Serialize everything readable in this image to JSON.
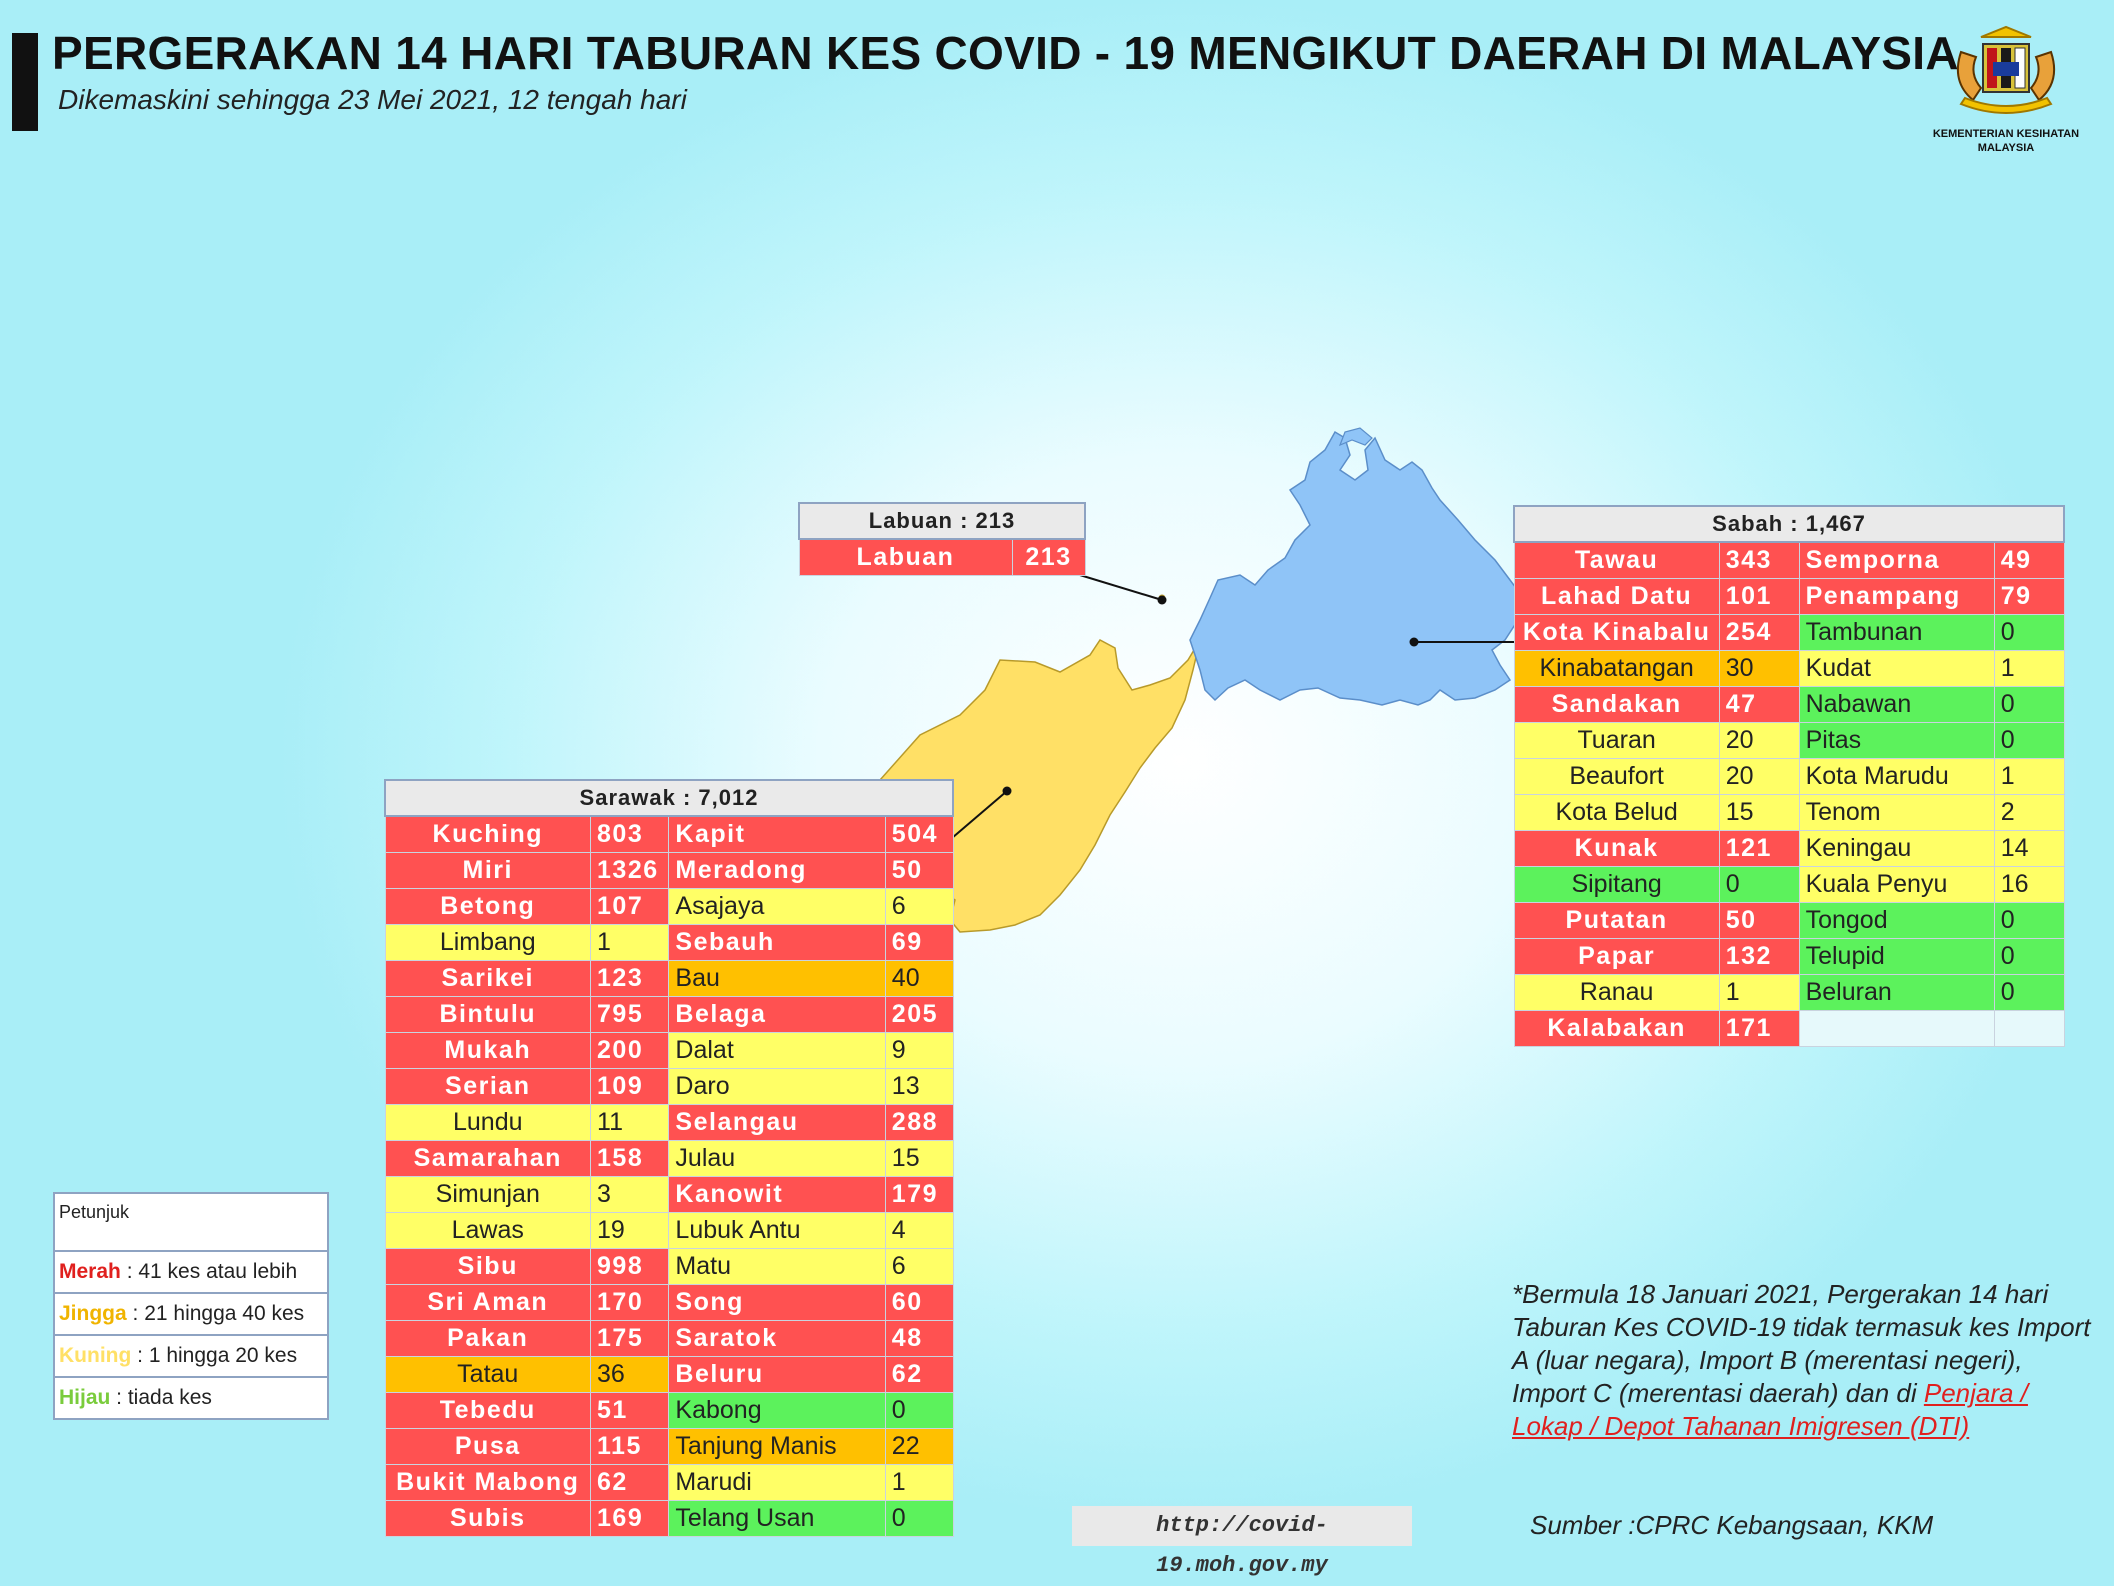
{
  "header": {
    "title": "PERGERAKAN 14 HARI TABURAN KES COVID - 19 MENGIKUT DAERAH DI MALAYSIA",
    "subtitle": "Dikemaskini sehingga 23 Mei 2021, 12 tengah hari"
  },
  "logo": {
    "text_line1": "KEMENTERIAN KESIHATAN",
    "text_line2": "MALAYSIA"
  },
  "colors": {
    "merah": "#ff5151",
    "jingga": "#ffc000",
    "kuning": "#ffff66",
    "hijau": "#5cf25c",
    "sabah_map": "#8fc4f7",
    "sarawak_map": "#ffe066"
  },
  "labuan": {
    "header": "Labuan : 213",
    "rows": [
      {
        "name": "Labuan",
        "value": "213",
        "level": "red"
      }
    ]
  },
  "sabah": {
    "header": "Sabah : 1,467",
    "rows": [
      [
        {
          "name": "Tawau",
          "value": "343",
          "level": "red"
        },
        {
          "name": "Semporna",
          "value": "49",
          "level": "red"
        }
      ],
      [
        {
          "name": "Lahad Datu",
          "value": "101",
          "level": "red"
        },
        {
          "name": "Penampang",
          "value": "79",
          "level": "red"
        }
      ],
      [
        {
          "name": "Kota Kinabalu",
          "value": "254",
          "level": "red"
        },
        {
          "name": "Tambunan",
          "value": "0",
          "level": "green"
        }
      ],
      [
        {
          "name": "Kinabatangan",
          "value": "30",
          "level": "orange"
        },
        {
          "name": "Kudat",
          "value": "1",
          "level": "yellow"
        }
      ],
      [
        {
          "name": "Sandakan",
          "value": "47",
          "level": "red"
        },
        {
          "name": "Nabawan",
          "value": "0",
          "level": "green"
        }
      ],
      [
        {
          "name": "Tuaran",
          "value": "20",
          "level": "yellow"
        },
        {
          "name": "Pitas",
          "value": "0",
          "level": "green"
        }
      ],
      [
        {
          "name": "Beaufort",
          "value": "20",
          "level": "yellow"
        },
        {
          "name": "Kota Marudu",
          "value": "1",
          "level": "yellow"
        }
      ],
      [
        {
          "name": "Kota Belud",
          "value": "15",
          "level": "yellow"
        },
        {
          "name": "Tenom",
          "value": "2",
          "level": "yellow"
        }
      ],
      [
        {
          "name": "Kunak",
          "value": "121",
          "level": "red"
        },
        {
          "name": "Keningau",
          "value": "14",
          "level": "yellow"
        }
      ],
      [
        {
          "name": "Sipitang",
          "value": "0",
          "level": "green"
        },
        {
          "name": "Kuala Penyu",
          "value": "16",
          "level": "yellow"
        }
      ],
      [
        {
          "name": "Putatan",
          "value": "50",
          "level": "red"
        },
        {
          "name": "Tongod",
          "value": "0",
          "level": "green"
        }
      ],
      [
        {
          "name": "Papar",
          "value": "132",
          "level": "red"
        },
        {
          "name": "Telupid",
          "value": "0",
          "level": "green"
        }
      ],
      [
        {
          "name": "Ranau",
          "value": "1",
          "level": "yellow"
        },
        {
          "name": "Beluran",
          "value": "0",
          "level": "green"
        }
      ],
      [
        {
          "name": "Kalabakan",
          "value": "171",
          "level": "red"
        },
        {
          "name": "",
          "value": "",
          "level": "empty"
        }
      ]
    ]
  },
  "sarawak": {
    "header": "Sarawak : 7,012",
    "rows": [
      [
        {
          "name": "Kuching",
          "value": "803",
          "level": "red"
        },
        {
          "name": "Kapit",
          "value": "504",
          "level": "red"
        }
      ],
      [
        {
          "name": "Miri",
          "value": "1326",
          "level": "red"
        },
        {
          "name": "Meradong",
          "value": "50",
          "level": "red"
        }
      ],
      [
        {
          "name": "Betong",
          "value": "107",
          "level": "red"
        },
        {
          "name": "Asajaya",
          "value": "6",
          "level": "yellow"
        }
      ],
      [
        {
          "name": "Limbang",
          "value": "1",
          "level": "yellow"
        },
        {
          "name": "Sebauh",
          "value": "69",
          "level": "red"
        }
      ],
      [
        {
          "name": "Sarikei",
          "value": "123",
          "level": "red"
        },
        {
          "name": "Bau",
          "value": "40",
          "level": "orange"
        }
      ],
      [
        {
          "name": "Bintulu",
          "value": "795",
          "level": "red"
        },
        {
          "name": "Belaga",
          "value": "205",
          "level": "red"
        }
      ],
      [
        {
          "name": "Mukah",
          "value": "200",
          "level": "red"
        },
        {
          "name": "Dalat",
          "value": "9",
          "level": "yellow"
        }
      ],
      [
        {
          "name": "Serian",
          "value": "109",
          "level": "red"
        },
        {
          "name": "Daro",
          "value": "13",
          "level": "yellow"
        }
      ],
      [
        {
          "name": "Lundu",
          "value": "11",
          "level": "yellow"
        },
        {
          "name": "Selangau",
          "value": "288",
          "level": "red"
        }
      ],
      [
        {
          "name": "Samarahan",
          "value": "158",
          "level": "red"
        },
        {
          "name": "Julau",
          "value": "15",
          "level": "yellow"
        }
      ],
      [
        {
          "name": "Simunjan",
          "value": "3",
          "level": "yellow"
        },
        {
          "name": "Kanowit",
          "value": "179",
          "level": "red"
        }
      ],
      [
        {
          "name": "Lawas",
          "value": "19",
          "level": "yellow"
        },
        {
          "name": "Lubuk Antu",
          "value": "4",
          "level": "yellow"
        }
      ],
      [
        {
          "name": "Sibu",
          "value": "998",
          "level": "red"
        },
        {
          "name": "Matu",
          "value": "6",
          "level": "yellow"
        }
      ],
      [
        {
          "name": "Sri Aman",
          "value": "170",
          "level": "red"
        },
        {
          "name": "Song",
          "value": "60",
          "level": "red"
        }
      ],
      [
        {
          "name": "Pakan",
          "value": "175",
          "level": "red"
        },
        {
          "name": "Saratok",
          "value": "48",
          "level": "red"
        }
      ],
      [
        {
          "name": "Tatau",
          "value": "36",
          "level": "orange"
        },
        {
          "name": "Beluru",
          "value": "62",
          "level": "red"
        }
      ],
      [
        {
          "name": "Tebedu",
          "value": "51",
          "level": "red"
        },
        {
          "name": "Kabong",
          "value": "0",
          "level": "green"
        }
      ],
      [
        {
          "name": "Pusa",
          "value": "115",
          "level": "red"
        },
        {
          "name": "Tanjung Manis",
          "value": "22",
          "level": "orange"
        }
      ],
      [
        {
          "name": "Bukit Mabong",
          "value": "62",
          "level": "red"
        },
        {
          "name": "Marudi",
          "value": "1",
          "level": "yellow"
        }
      ],
      [
        {
          "name": "Subis",
          "value": "169",
          "level": "red"
        },
        {
          "name": "Telang Usan",
          "value": "0",
          "level": "green"
        }
      ]
    ]
  },
  "legend": {
    "title": "Petunjuk",
    "items": [
      {
        "key": "Merah",
        "text": " : 41 kes atau lebih",
        "color": "#e0201e"
      },
      {
        "key": "Jingga",
        "text": " : 21 hingga 40 kes",
        "color": "#f0b400"
      },
      {
        "key": "Kuning",
        "text": " : 1 hingga 20 kes",
        "color": "#ffe066"
      },
      {
        "key": "Hijau",
        "text": " : tiada kes",
        "color": "#7acc3c"
      }
    ]
  },
  "note": {
    "text": "*Bermula 18 Januari 2021, Pergerakan 14 hari Taburan Kes COVID-19 tidak termasuk kes Import A (luar negara), Import B (merentasi negeri), Import C (merentasi daerah) dan di ",
    "link": "Penjara / Lokap / Depot Tahanan Imigresen (DTI)"
  },
  "source": "Sumber :CPRC Kebangsaan,  KKM",
  "url": "http://covid-19.moh.gov.my"
}
